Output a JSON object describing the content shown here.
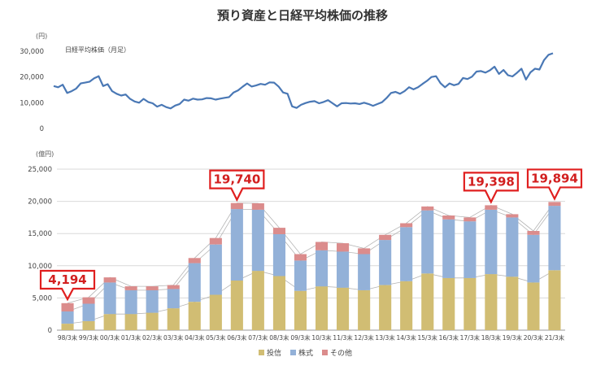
{
  "chart_data": [
    {
      "type": "line",
      "title": "預り資産と日経平均株価の推移",
      "unit_label": "(円)",
      "series": [
        {
          "name": "日経平均株価（月足）",
          "color": "#4a78b5",
          "values": [
            16500,
            16000,
            17000,
            13800,
            14500,
            15500,
            17500,
            17800,
            18200,
            19500,
            20300,
            16500,
            17200,
            14500,
            13500,
            12800,
            13200,
            11500,
            10500,
            10000,
            11500,
            10300,
            9800,
            8500,
            9200,
            8300,
            7800,
            8900,
            9500,
            11200,
            10800,
            11600,
            11200,
            11300,
            11800,
            11700,
            11200,
            11600,
            11900,
            12200,
            14000,
            14800,
            16200,
            17500,
            16300,
            16700,
            17300,
            17000,
            17900,
            17800,
            16300,
            14000,
            13500,
            8600,
            8000,
            9200,
            9900,
            10400,
            10600,
            9800,
            10300,
            11000,
            9800,
            8600,
            9800,
            9900,
            9700,
            9800,
            9500,
            10000,
            9500,
            8800,
            9500,
            10200,
            11800,
            13800,
            14200,
            13500,
            14500,
            16000,
            15200,
            16000,
            17300,
            18500,
            20000,
            20300,
            17600,
            16000,
            17500,
            16800,
            17300,
            19600,
            19200,
            20100,
            22100,
            22300,
            21700,
            22600,
            24000,
            21200,
            22700,
            20700,
            20200,
            21600,
            23200,
            19000,
            21800,
            23200,
            22900,
            26500,
            28600,
            29200
          ]
        }
      ],
      "ylim": [
        0,
        30000
      ],
      "yticks": [
        "0",
        "10,000",
        "20,000",
        "30,000"
      ],
      "ytick_values": [
        0,
        10000,
        20000,
        30000
      ]
    },
    {
      "type": "bar",
      "stacked": true,
      "unit_label": "(億円)",
      "categories": [
        "98/3末",
        "99/3末",
        "00/3末",
        "01/3末",
        "02/3末",
        "03/3末",
        "04/3末",
        "05/3末",
        "06/3末",
        "07/3末",
        "08/3末",
        "09/3末",
        "10/3末",
        "11/3末",
        "12/3末",
        "13/3末",
        "14/3末",
        "15/3末",
        "16/3末",
        "17/3末",
        "18/3末",
        "19/3末",
        "20/3末",
        "21/3末"
      ],
      "series": [
        {
          "name": "投信",
          "color": "#d1bd73",
          "values": [
            1000,
            1400,
            2500,
            2500,
            2700,
            3400,
            4400,
            5500,
            7700,
            9200,
            8400,
            6100,
            6800,
            6600,
            6200,
            7000,
            7600,
            8800,
            8100,
            8100,
            8700,
            8300,
            7400,
            9300
          ]
        },
        {
          "name": "株式",
          "color": "#93b1d8",
          "values": [
            1900,
            2700,
            4900,
            3700,
            3500,
            3000,
            6000,
            7800,
            11100,
            9500,
            6500,
            4700,
            5600,
            5600,
            5600,
            7000,
            8400,
            9800,
            9100,
            8800,
            10000,
            9200,
            7400,
            10000
          ]
        },
        {
          "name": "その他",
          "color": "#db8c8c",
          "values": [
            1294,
            1000,
            800,
            600,
            600,
            600,
            800,
            1000,
            940,
            1000,
            1000,
            1000,
            1300,
            1300,
            900,
            800,
            600,
            600,
            600,
            600,
            698,
            500,
            600,
            594
          ]
        }
      ],
      "totals": [
        4194,
        5100,
        8200,
        6800,
        6800,
        7000,
        11200,
        14300,
        19740,
        19700,
        15900,
        11800,
        13700,
        13500,
        12700,
        14800,
        16600,
        19200,
        17800,
        17500,
        19398,
        18000,
        15400,
        19894
      ],
      "ylim": [
        0,
        25000
      ],
      "yticks": [
        "0",
        "5,000",
        "10,000",
        "15,000",
        "20,000",
        "25,000"
      ],
      "ytick_values": [
        0,
        5000,
        10000,
        15000,
        20000,
        25000
      ],
      "callouts": [
        {
          "index": 0,
          "label": "4,194",
          "side": "below"
        },
        {
          "index": 8,
          "label": "19,740",
          "side": "above"
        },
        {
          "index": 20,
          "label": "19,398",
          "side": "above"
        },
        {
          "index": 23,
          "label": "19,894",
          "side": "above"
        }
      ],
      "callout_color": "#e01f1f",
      "legend_position": "bottom"
    }
  ]
}
